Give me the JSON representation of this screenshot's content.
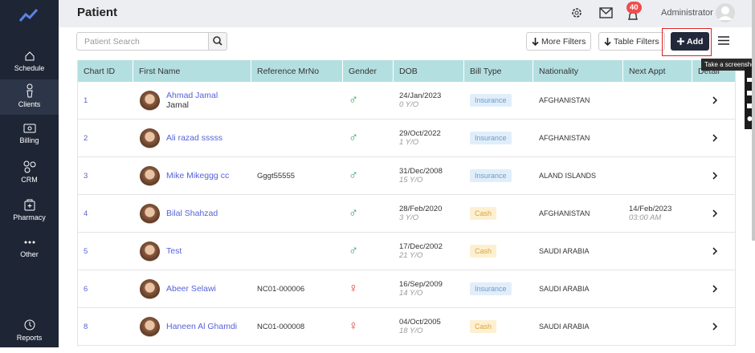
{
  "sidebar": {
    "items": [
      "Schedule",
      "Clients",
      "Billing",
      "CRM",
      "Pharmacy",
      "Other"
    ],
    "bottom": "Reports"
  },
  "header": {
    "title": "Patient",
    "notifications": "40",
    "user": "Administrator"
  },
  "toolbar": {
    "search_placeholder": "Patient Search",
    "more_filters": "More Filters",
    "table_filters": "Table Filters",
    "add": "Add",
    "tooltip": "Take a screenshot"
  },
  "table": {
    "columns": [
      "Chart ID",
      "First Name",
      "Reference MrNo",
      "Gender",
      "DOB",
      "Bill Type",
      "Nationality",
      "Next Appt",
      "Detail"
    ],
    "rows": [
      {
        "id": "1",
        "name": "Ahmad Jamal",
        "sub_name": "Jamal",
        "gender": "♂",
        "dob": "24/Jan/2023",
        "age": "0 Y/O",
        "bill_type": "Insurance",
        "nationality": "AFGHANISTAN"
      },
      {
        "id": "2",
        "name": "Ali razad sssss",
        "gender": "♂",
        "dob": "29/Oct/2022",
        "age": "1 Y/O",
        "bill_type": "Insurance",
        "nationality": "AFGHANISTAN"
      },
      {
        "id": "3",
        "name": "Mike Mikeggg cc",
        "mrno": "Gggt55555",
        "gender": "♂",
        "dob": "31/Dec/2008",
        "age": "15 Y/O",
        "bill_type": "Insurance",
        "nationality": "ALAND ISLANDS"
      },
      {
        "id": "4",
        "name": "Bilal Shahzad",
        "gender": "♂",
        "dob": "28/Feb/2020",
        "age": "3 Y/O",
        "bill_type": "Cash",
        "nationality": "AFGHANISTAN",
        "next_appt": "14/Feb/2023",
        "next_appt_time": "03:00 AM"
      },
      {
        "id": "5",
        "name": "Test",
        "gender": "♂",
        "dob": "17/Dec/2002",
        "age": "21 Y/O",
        "bill_type": "Cash",
        "nationality": "SAUDI ARABIA"
      },
      {
        "id": "6",
        "name": "Abeer Selawi",
        "mrno": "NC01-000006",
        "gender": "♀",
        "dob": "16/Sep/2009",
        "age": "14 Y/O",
        "bill_type": "Insurance",
        "nationality": "SAUDI ARABIA"
      },
      {
        "id": "8",
        "name": "Haneen Al Ghamdi",
        "mrno": "NC01-000008",
        "gender": "♀",
        "dob": "04/Oct/2005",
        "age": "18 Y/O",
        "bill_type": "Cash",
        "nationality": "SAUDI ARABIA"
      }
    ]
  }
}
